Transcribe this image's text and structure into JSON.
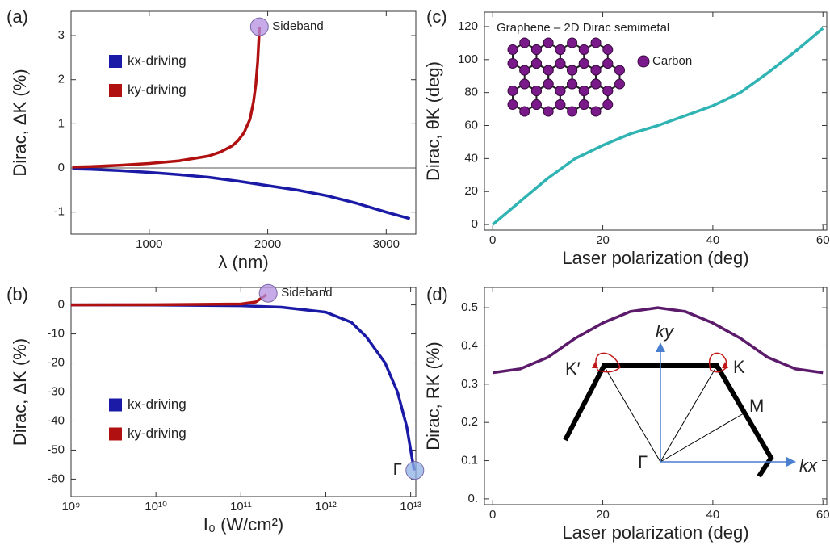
{
  "chart_data": [
    {
      "type": "line",
      "panel_label": "(a)",
      "xlabel": "λ (nm)",
      "ylabel": "Dirac, ΔK (%)",
      "xlim": [
        340,
        3250
      ],
      "ylim": [
        -1.5,
        3.55
      ],
      "xticks": [
        1000,
        2000,
        3000
      ],
      "yticks": [
        -1,
        0,
        1,
        2,
        3
      ],
      "hline": 0,
      "legend": "upper left",
      "series": [
        {
          "name": "kx-driving",
          "color": "#1a1aa6",
          "x": [
            350,
            500,
            750,
            1000,
            1250,
            1500,
            1750,
            2000,
            2250,
            2500,
            2750,
            3000,
            3200
          ],
          "values": [
            -0.02,
            -0.03,
            -0.06,
            -0.1,
            -0.15,
            -0.21,
            -0.3,
            -0.4,
            -0.5,
            -0.63,
            -0.8,
            -1.0,
            -1.15
          ]
        },
        {
          "name": "ky-driving",
          "color": "#b01010",
          "x": [
            350,
            500,
            750,
            1000,
            1250,
            1500,
            1600,
            1700,
            1750,
            1800,
            1850,
            1880,
            1900,
            1915,
            1925,
            1930
          ],
          "values": [
            0.02,
            0.03,
            0.06,
            0.1,
            0.16,
            0.27,
            0.36,
            0.5,
            0.62,
            0.8,
            1.1,
            1.5,
            1.9,
            2.4,
            2.9,
            3.2
          ]
        }
      ],
      "markers": [
        {
          "label": "Sideband",
          "x": 1930,
          "y": 3.2,
          "color": "#b48ee0"
        }
      ]
    },
    {
      "type": "line",
      "panel_label": "(b)",
      "xlabel": "I₀ (W/cm²)",
      "ylabel": "Dirac, ΔK (%)",
      "log_x": true,
      "xlim": [
        1000000000,
        11500000000000
      ],
      "ylim": [
        -66,
        6
      ],
      "xticks": [
        {
          "value": 1000000000,
          "label": "10⁹"
        },
        {
          "value": 10000000000,
          "label": "10¹⁰"
        },
        {
          "value": 100000000000,
          "label": "10¹¹"
        },
        {
          "value": 1000000000000,
          "label": "10¹²"
        },
        {
          "value": 10000000000000,
          "label": "10¹³"
        }
      ],
      "yticks": [
        -60,
        -50,
        -40,
        -30,
        -20,
        -10,
        0
      ],
      "legend": "center left",
      "series": [
        {
          "name": "kx-driving",
          "color": "#1a1aa6",
          "x": [
            1000000000,
            10000000000,
            100000000000,
            300000000000,
            1000000000000,
            2000000000000,
            3000000000000,
            5000000000000,
            7000000000000,
            9000000000000,
            10000000000000,
            11000000000000
          ],
          "values": [
            0,
            -0.05,
            -0.3,
            -0.8,
            -2.5,
            -6,
            -11,
            -20,
            -30,
            -42,
            -50,
            -57
          ]
        },
        {
          "name": "ky-driving",
          "color": "#b01010",
          "x": [
            1000000000,
            10000000000,
            100000000000,
            150000000000,
            200000000000
          ],
          "values": [
            0,
            0.05,
            0.3,
            1,
            3.5
          ]
        }
      ],
      "markers": [
        {
          "label": "Sideband",
          "x": 210000000000,
          "y": 4,
          "color": "#b48ee0"
        },
        {
          "label": "Γ",
          "x": 11200000000000,
          "y": -57,
          "color": "#8fb0e6"
        }
      ]
    },
    {
      "type": "line",
      "panel_label": "(c)",
      "xlabel": "Laser polarization (deg)",
      "ylabel": "Dirac, θK (deg)",
      "xlim": [
        -1.5,
        60.7
      ],
      "ylim": [
        -3.4,
        128.8
      ],
      "xticks": [
        0,
        20,
        40,
        60
      ],
      "yticks": [
        0,
        20,
        40,
        60,
        80,
        100,
        120
      ],
      "x": [
        0,
        5,
        10,
        15,
        20,
        25,
        30,
        35,
        40,
        45,
        50,
        55,
        60
      ],
      "series": [
        {
          "color": "#2fb3b3",
          "values": [
            0,
            14,
            28,
            40,
            48,
            55,
            60,
            66,
            72,
            80,
            92,
            105,
            119
          ]
        }
      ],
      "inset_labels": [
        "Graphene – 2D Dirac semimetal",
        "Carbon"
      ]
    },
    {
      "type": "line",
      "panel_label": "(d)",
      "xlabel": "Laser polarization (deg)",
      "ylabel": "Dirac, RK (%)",
      "xlim": [
        -1.5,
        60.7
      ],
      "ylim": [
        -0.015,
        0.553
      ],
      "xticks": [
        0,
        20,
        40,
        60
      ],
      "yticks": [
        {
          "value": 0,
          "label": "0."
        },
        0.1,
        0.2,
        0.3,
        0.4,
        0.5
      ],
      "x": [
        0,
        5,
        10,
        15,
        20,
        25,
        30,
        35,
        40,
        45,
        50,
        55,
        60
      ],
      "series": [
        {
          "color": "#5c1a6b",
          "values": [
            0.33,
            0.34,
            0.37,
            0.42,
            0.46,
            0.49,
            0.5,
            0.49,
            0.46,
            0.42,
            0.37,
            0.34,
            0.33
          ]
        }
      ],
      "inset_labels": [
        "ky",
        "K′",
        "K",
        "M",
        "Γ",
        "kx"
      ]
    }
  ]
}
